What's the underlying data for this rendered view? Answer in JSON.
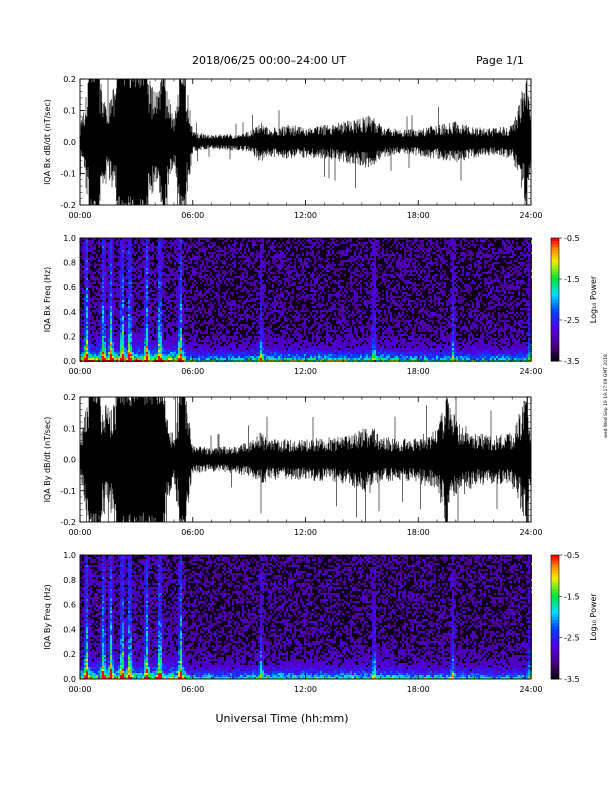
{
  "header": {
    "date_range": "2018/06/25  00:00–24:00 UT",
    "page": "Page 1/1"
  },
  "side_stamp": "wed Wed Sep 19 19:17:08 GMT 2018",
  "xlabel": "Universal Time (hh:mm)",
  "chart_data": [
    {
      "type": "line",
      "ylabel": "IQA Bx dB/dt (nT/sec)",
      "xlim_hours": [
        0,
        24
      ],
      "x_ticks": [
        "00:00",
        "06:00",
        "12:00",
        "18:00",
        "24:00"
      ],
      "ylim": [
        -0.2,
        0.2
      ],
      "y_ticks": [
        "-0.2",
        "-0.1",
        "0.0",
        "0.1",
        "0.2"
      ],
      "envelope": {
        "hours": [
          0,
          0.5,
          1,
          1.5,
          2,
          2.5,
          3,
          3.5,
          4,
          4.5,
          5,
          5.3,
          5.6,
          6,
          7,
          8,
          9,
          9.6,
          10,
          11,
          12,
          13,
          14,
          15,
          15.5,
          16,
          17,
          18,
          19,
          20,
          21,
          22,
          23,
          23.8,
          24
        ],
        "amplitude": [
          0.04,
          0.2,
          0.2,
          0.1,
          0.2,
          0.2,
          0.2,
          0.2,
          0.15,
          0.2,
          0.06,
          0.2,
          0.2,
          0.03,
          0.02,
          0.025,
          0.03,
          0.06,
          0.04,
          0.05,
          0.045,
          0.05,
          0.06,
          0.07,
          0.08,
          0.05,
          0.035,
          0.04,
          0.05,
          0.06,
          0.045,
          0.04,
          0.05,
          0.2,
          0.05
        ]
      }
    },
    {
      "type": "heatmap",
      "ylabel": "IQA Bx Freq (Hz)",
      "xlim_hours": [
        0,
        24
      ],
      "x_ticks": [
        "00:00",
        "06:00",
        "12:00",
        "18:00",
        "24:00"
      ],
      "ylim": [
        0,
        1.0
      ],
      "y_ticks": [
        "0.0",
        "0.2",
        "0.4",
        "0.6",
        "0.8",
        "1.0"
      ],
      "colorbar": {
        "label": "Log₁₀ Power",
        "range": [
          -3.5,
          -0.5
        ],
        "ticks": [
          "-0.5",
          "-1.5",
          "-2.5",
          "-3.5"
        ]
      },
      "bursts_hours": [
        0.3,
        1.2,
        1.6,
        2.2,
        2.6,
        3.5,
        4.2,
        5.3,
        9.6,
        15.6,
        19.8,
        23.9
      ]
    },
    {
      "type": "line",
      "ylabel": "IQA By dB/dt (nT/sec)",
      "xlim_hours": [
        0,
        24
      ],
      "x_ticks": [
        "00:00",
        "06:00",
        "12:00",
        "18:00",
        "24:00"
      ],
      "ylim": [
        -0.2,
        0.2
      ],
      "y_ticks": [
        "-0.2",
        "-0.1",
        "0.0",
        "0.1",
        "0.2"
      ],
      "envelope": {
        "hours": [
          0,
          0.5,
          1,
          1.5,
          2,
          2.5,
          3,
          3.5,
          4,
          4.5,
          5,
          5.3,
          5.6,
          6,
          7,
          8,
          9,
          9.6,
          10,
          11,
          12,
          13,
          14,
          15,
          15.5,
          16,
          17,
          18,
          19,
          19.5,
          20,
          21,
          22,
          23,
          23.8,
          24
        ],
        "amplitude": [
          0.06,
          0.2,
          0.2,
          0.15,
          0.2,
          0.2,
          0.2,
          0.2,
          0.2,
          0.2,
          0.06,
          0.2,
          0.2,
          0.04,
          0.035,
          0.04,
          0.05,
          0.08,
          0.06,
          0.06,
          0.06,
          0.065,
          0.07,
          0.09,
          0.1,
          0.07,
          0.06,
          0.07,
          0.09,
          0.2,
          0.12,
          0.08,
          0.07,
          0.08,
          0.2,
          0.06
        ]
      }
    },
    {
      "type": "heatmap",
      "ylabel": "IQA By Freq (Hz)",
      "xlim_hours": [
        0,
        24
      ],
      "x_ticks": [
        "00:00",
        "06:00",
        "12:00",
        "18:00",
        "24:00"
      ],
      "ylim": [
        0,
        1.0
      ],
      "y_ticks": [
        "0.0",
        "0.2",
        "0.4",
        "0.6",
        "0.8",
        "1.0"
      ],
      "colorbar": {
        "label": "Log₁₀ Power",
        "range": [
          -3.5,
          -0.5
        ],
        "ticks": [
          "-0.5",
          "-1.5",
          "-2.5",
          "-3.5"
        ]
      },
      "bursts_hours": [
        0.3,
        1.2,
        1.6,
        2.2,
        2.6,
        3.5,
        4.2,
        5.3,
        9.6,
        15.6,
        19.8,
        23.9
      ]
    }
  ]
}
